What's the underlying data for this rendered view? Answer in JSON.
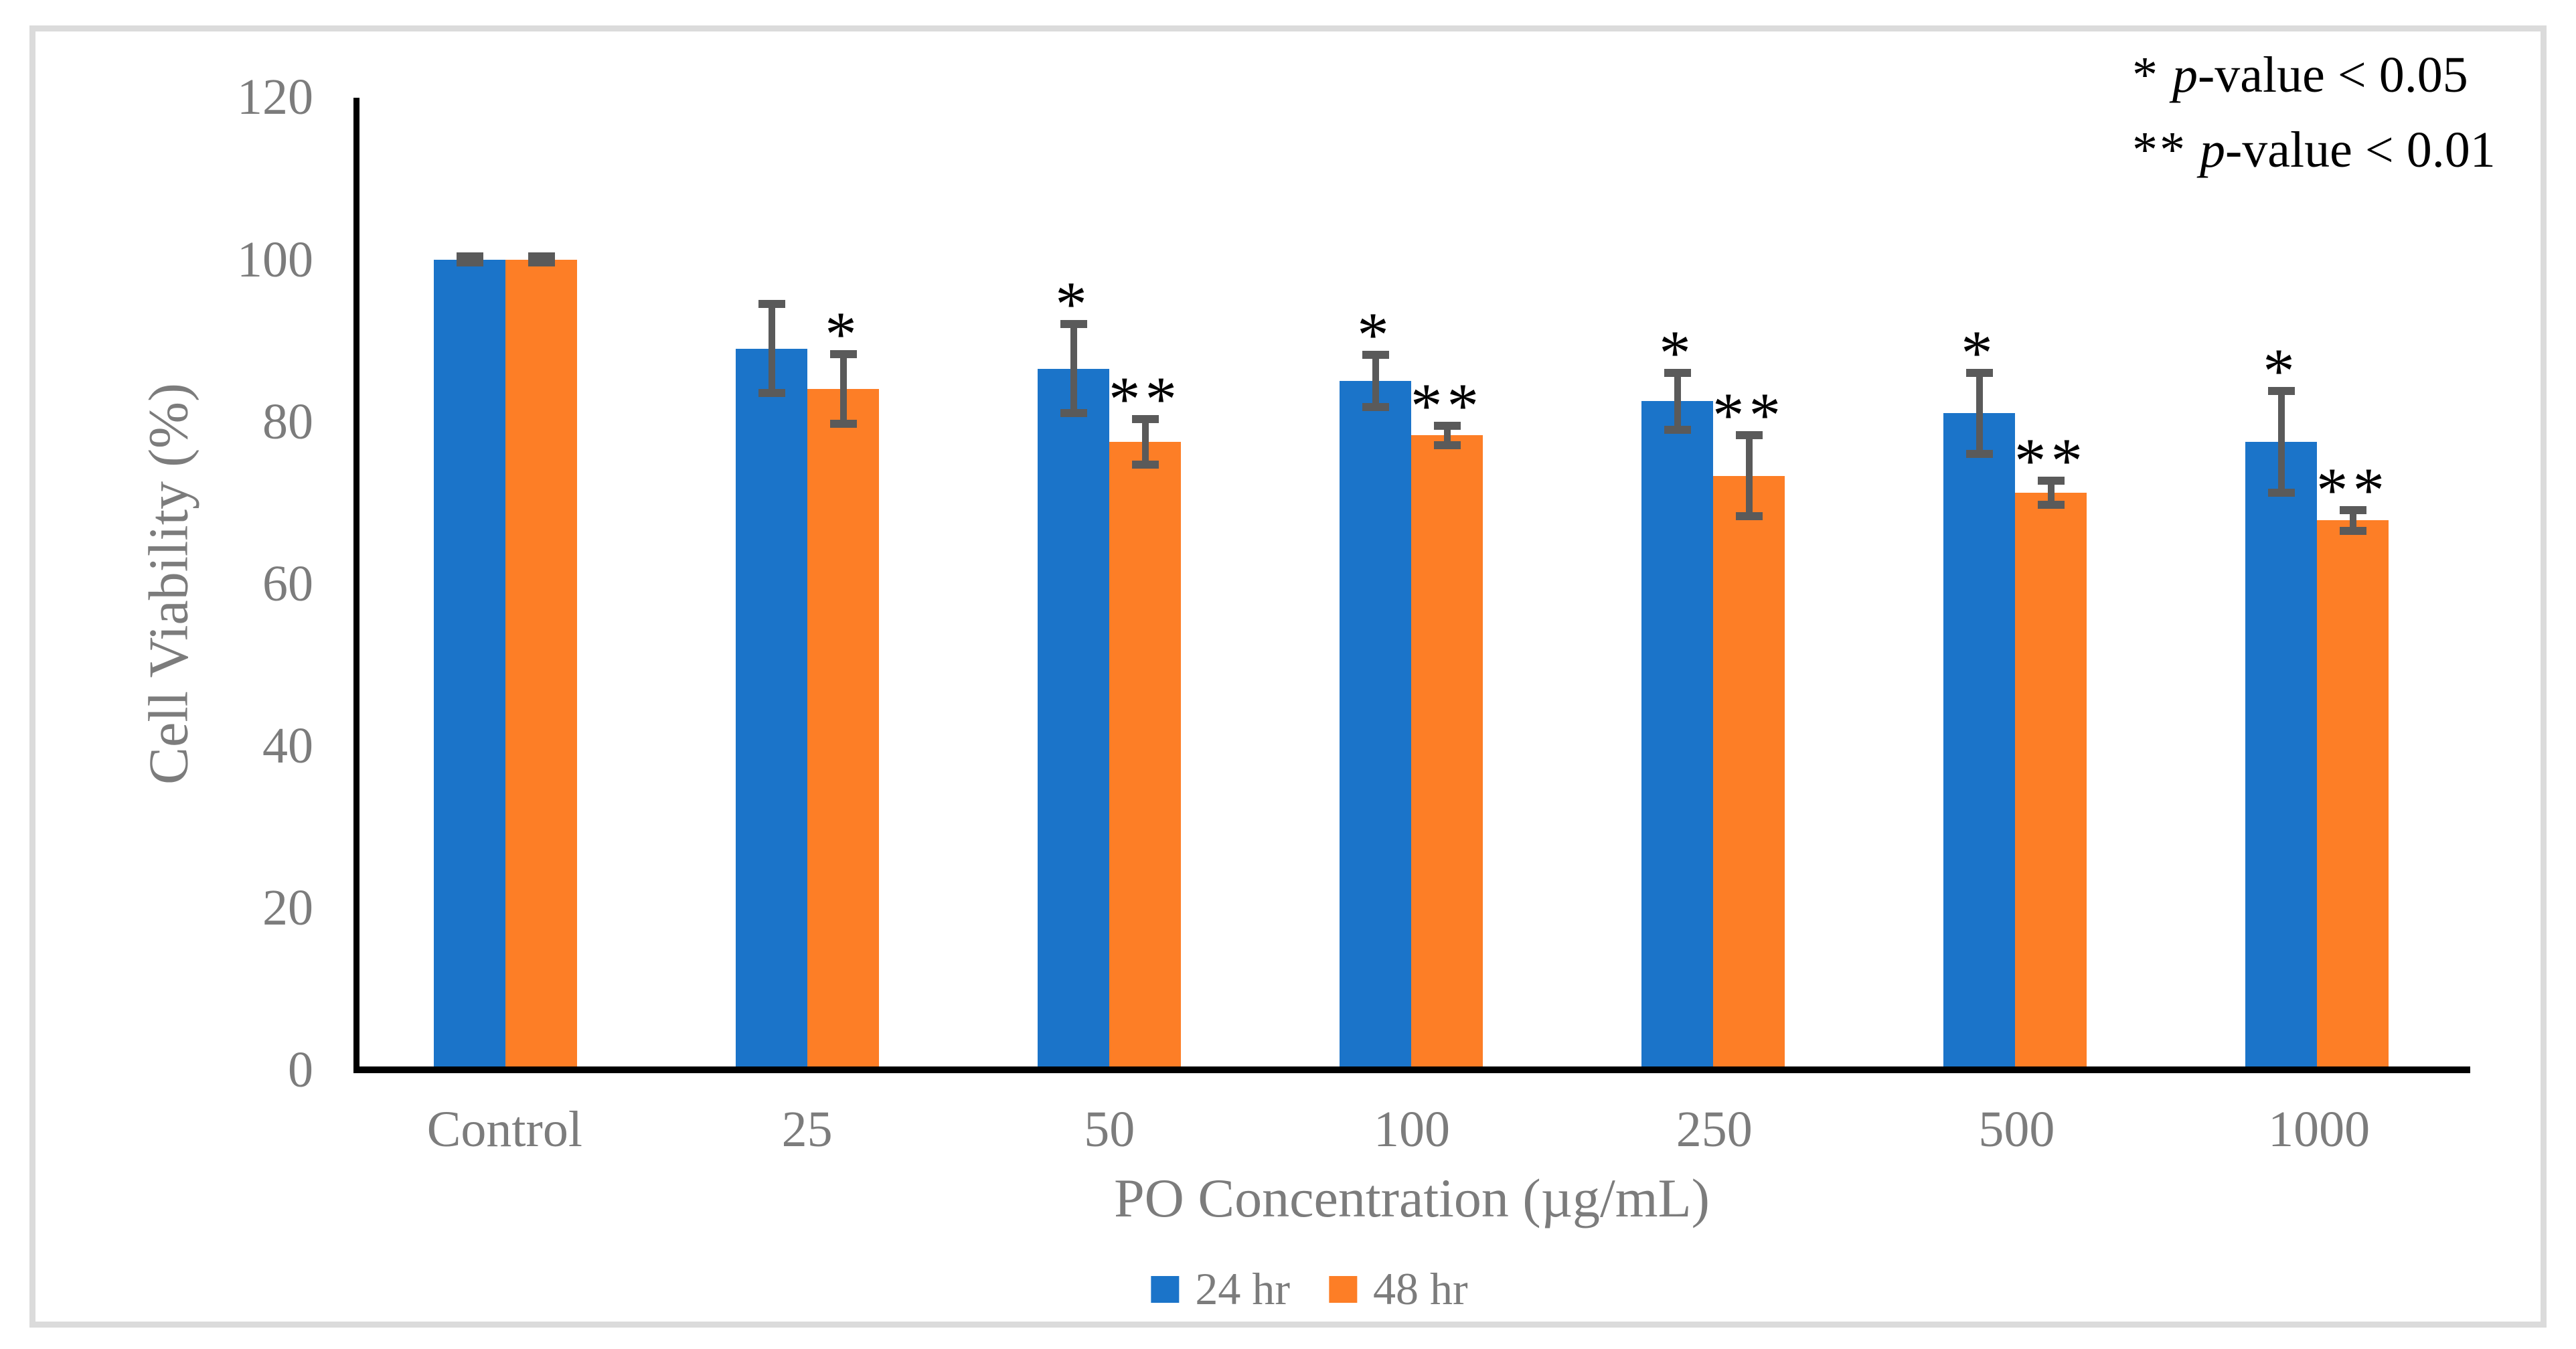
{
  "chart_data": {
    "type": "bar",
    "title": "",
    "categories": [
      "Control",
      "25",
      "50",
      "100",
      "250",
      "500",
      "1000"
    ],
    "series": [
      {
        "name": "24 hr",
        "color": "#1B74C9",
        "values": [
          100,
          89,
          86.5,
          85,
          82.5,
          81,
          77.5
        ],
        "errors": [
          0.4,
          5.5,
          5.5,
          3.2,
          3.5,
          5.0,
          6.3
        ],
        "sig": [
          "",
          "",
          "*",
          "*",
          "*",
          "*",
          "*"
        ]
      },
      {
        "name": "48 hr",
        "color": "#FD7E26",
        "values": [
          100,
          84,
          77.5,
          78.3,
          73.3,
          71.2,
          67.8
        ],
        "errors": [
          0.4,
          4.3,
          2.8,
          1.2,
          5.0,
          1.5,
          1.3
        ],
        "sig": [
          "",
          "*",
          "**",
          "**",
          "**",
          "**",
          "**"
        ]
      }
    ],
    "xlabel": "PO Concentration (µg/mL)",
    "ylabel": "Cell Viability (%)",
    "ylim": [
      0,
      120
    ],
    "ytick_step": 20,
    "yticks": [
      "0",
      "20",
      "40",
      "60",
      "80",
      "100",
      "120"
    ],
    "legend_position": "bottom",
    "grid": false,
    "error_bars": true
  },
  "annotation": {
    "lines": [
      {
        "marker": "*",
        "italic": "p",
        "text": "-value < 0.05"
      },
      {
        "marker": "**",
        "italic": "p",
        "text": "-value < 0.01"
      }
    ]
  },
  "colors": {
    "error_bar": "#5A5A5A",
    "axis_line": "#000000",
    "label_gray": "#7C7C7C",
    "annotation_text": "#000000",
    "frame_border": "#DBDBDB"
  }
}
